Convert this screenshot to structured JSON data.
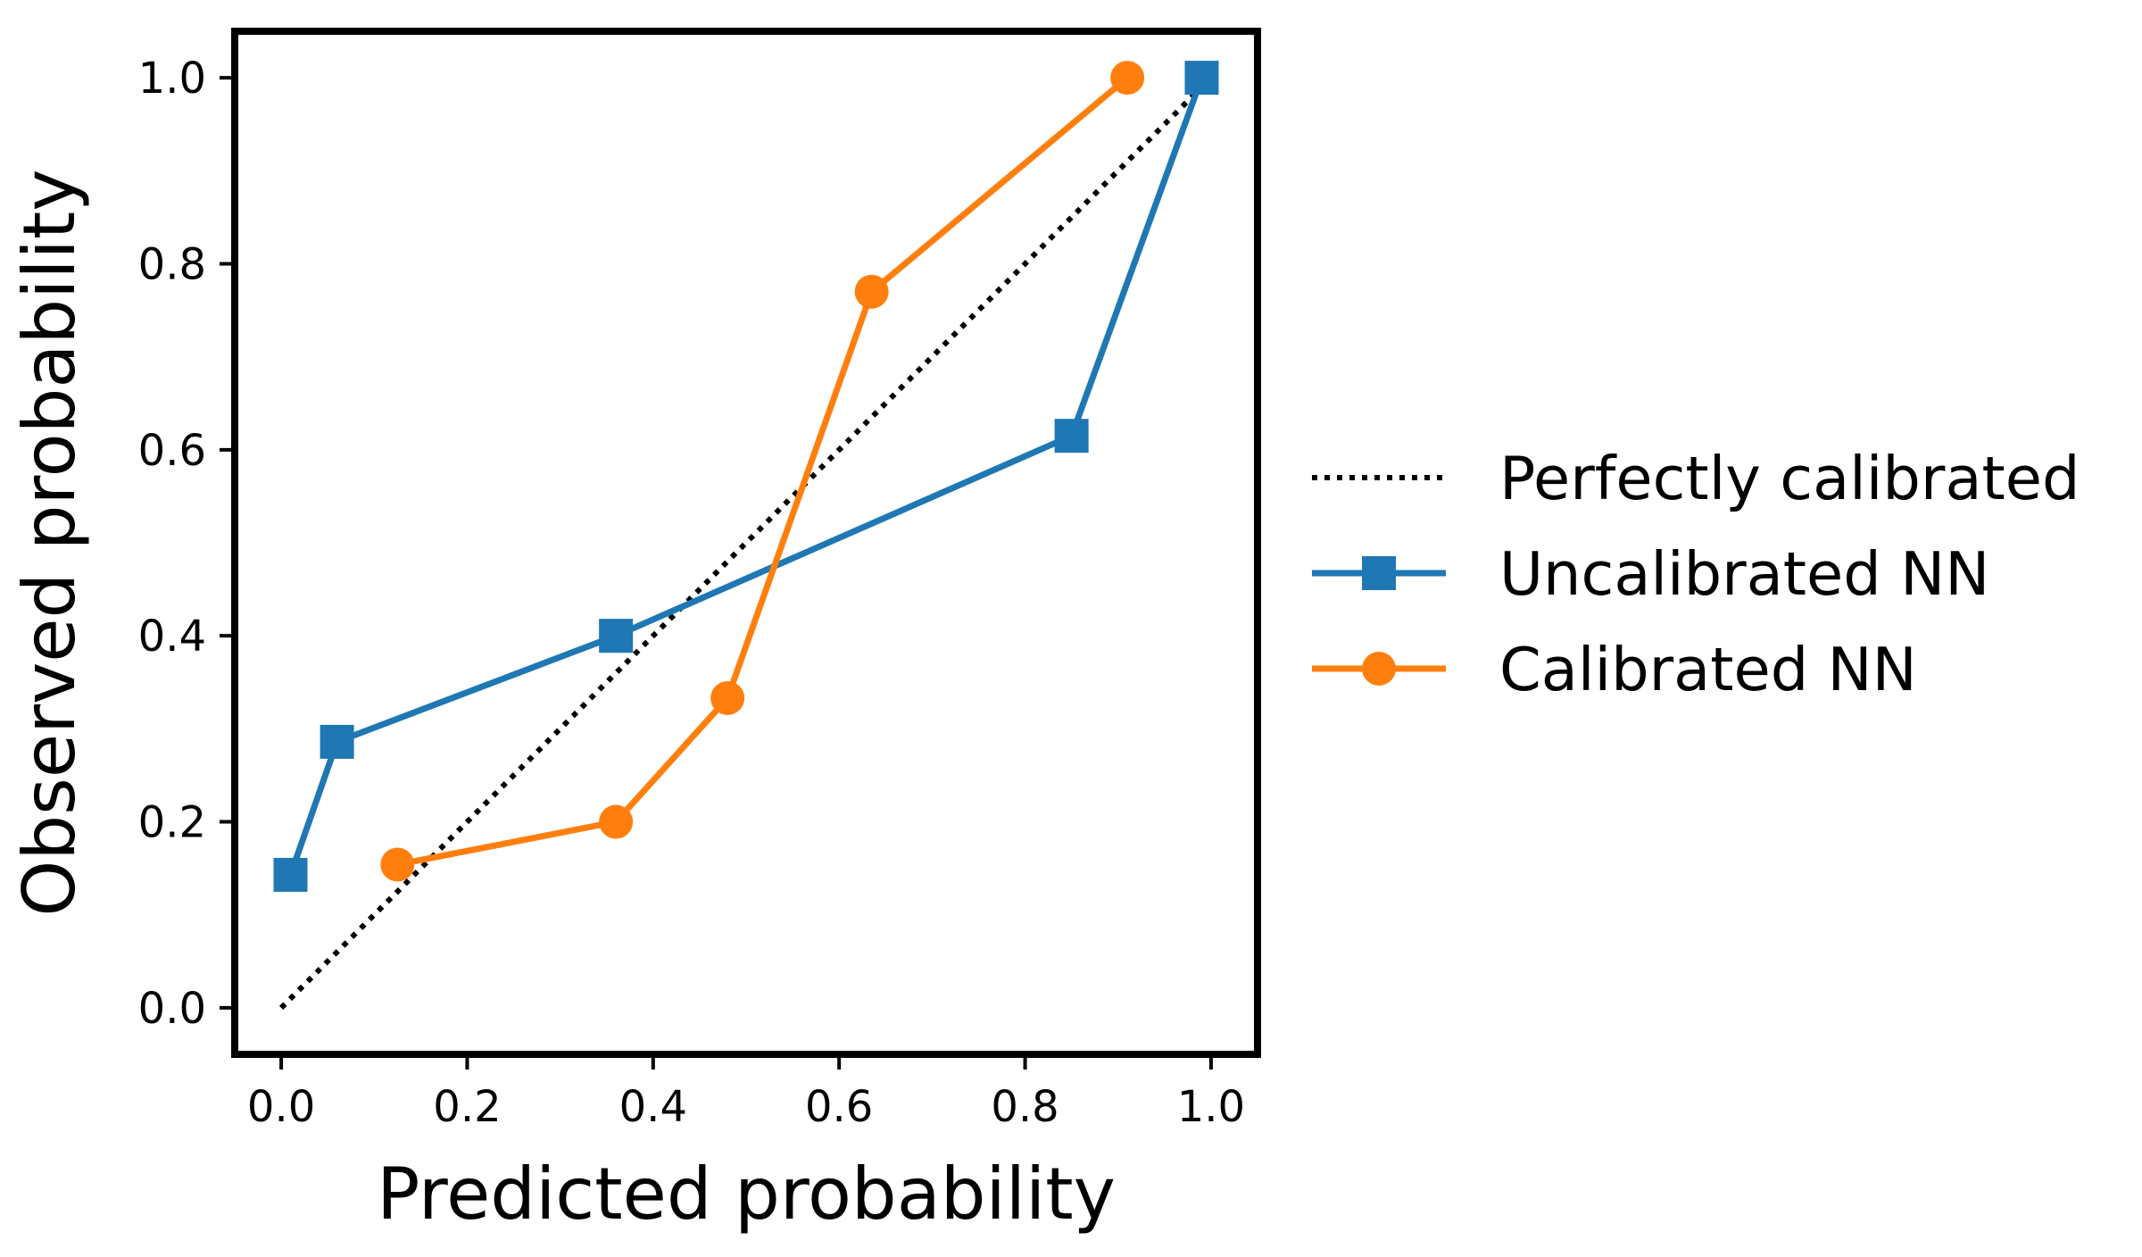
{
  "chart_data": {
    "type": "line",
    "title": "",
    "xlabel": "Predicted probability",
    "ylabel": "Observed probability",
    "xlim": [
      -0.05,
      1.05
    ],
    "ylim": [
      -0.05,
      1.05
    ],
    "xticks": [
      "0.0",
      "0.2",
      "0.4",
      "0.6",
      "0.8",
      "1.0"
    ],
    "yticks": [
      "0.0",
      "0.2",
      "0.4",
      "0.6",
      "0.8",
      "1.0"
    ],
    "grid": false,
    "legend_position": "outside-right",
    "series": [
      {
        "name": "Perfectly calibrated",
        "style": "dotted",
        "marker": "none",
        "color": "#000000",
        "x": [
          0.0,
          1.0
        ],
        "y": [
          0.0,
          1.0
        ]
      },
      {
        "name": "Uncalibrated NN",
        "style": "solid",
        "marker": "square",
        "color": "#1f77b4",
        "x": [
          0.01,
          0.06,
          0.36,
          0.85,
          0.99
        ],
        "y": [
          0.143,
          0.286,
          0.4,
          0.615,
          1.0
        ]
      },
      {
        "name": "Calibrated NN",
        "style": "solid",
        "marker": "circle",
        "color": "#ff7f0e",
        "x": [
          0.125,
          0.36,
          0.48,
          0.635,
          0.91
        ],
        "y": [
          0.154,
          0.2,
          0.333,
          0.77,
          1.0
        ]
      }
    ]
  }
}
